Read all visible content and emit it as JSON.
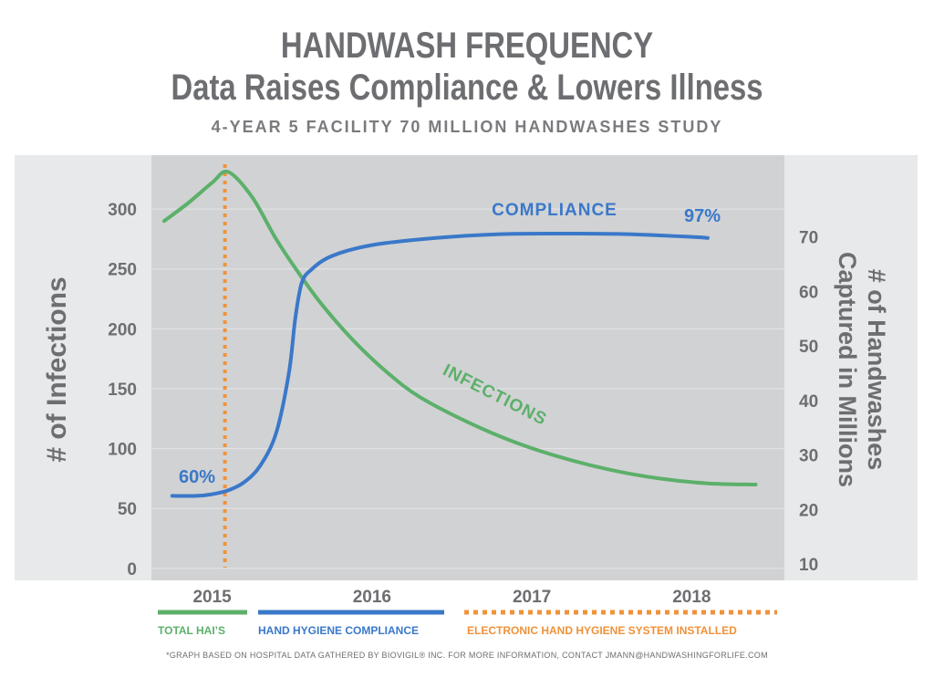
{
  "title": "HANDWASH FREQUENCY",
  "subtitle": "Data Raises Compliance & Lowers Illness",
  "study_line": "4-YEAR 5 FACILITY 70 MILLION HANDWASHES STUDY",
  "footnote": "*GRAPH BASED ON HOSPITAL DATA GATHERED BY BIOVIGIL® INC.  FOR MORE INFORMATION, CONTACT JMANN@HANDWASHINGFORLIFE.COM",
  "colors": {
    "infections": "#5cb06a",
    "compliance": "#3a78c9",
    "installed": "#f0923a",
    "plot_bg": "#d1d2d4",
    "outer_bg": "#e8e9ea",
    "axis_text": "#6d6e71"
  },
  "chart_data": {
    "type": "line",
    "xlabel": "",
    "x_ticks": [
      2015,
      2016,
      2017,
      2018
    ],
    "xlim": [
      2014.62,
      2018.58
    ],
    "y_left": {
      "label": "# of Infections",
      "ticks": [
        0,
        50,
        100,
        150,
        200,
        250,
        300
      ],
      "lim": [
        -10,
        345
      ]
    },
    "y_right": {
      "label_line1": "# of Handwashes",
      "label_line2": "Captured in Millions",
      "ticks": [
        10,
        20,
        30,
        40,
        50,
        60,
        70
      ],
      "lim": [
        7,
        85
      ]
    },
    "series": [
      {
        "name": "TOTAL HAI’S",
        "axis": "left",
        "annotation": "INFECTIONS",
        "points": [
          [
            2014.7,
            290
          ],
          [
            2014.85,
            305
          ],
          [
            2015.0,
            322
          ],
          [
            2015.1,
            331
          ],
          [
            2015.25,
            310
          ],
          [
            2015.4,
            275
          ],
          [
            2015.55,
            245
          ],
          [
            2015.7,
            218
          ],
          [
            2015.9,
            188
          ],
          [
            2016.1,
            163
          ],
          [
            2016.3,
            143
          ],
          [
            2016.6,
            122
          ],
          [
            2016.9,
            105
          ],
          [
            2017.2,
            92
          ],
          [
            2017.5,
            82
          ],
          [
            2017.8,
            75
          ],
          [
            2018.1,
            71
          ],
          [
            2018.4,
            70
          ]
        ]
      },
      {
        "name": "HAND HYGIENE COMPLIANCE",
        "axis": "right",
        "annotation": "COMPLIANCE",
        "start_label": "60%",
        "end_label": "97%",
        "points": [
          [
            2014.75,
            22.5
          ],
          [
            2014.9,
            22.5
          ],
          [
            2015.0,
            22.8
          ],
          [
            2015.1,
            23.5
          ],
          [
            2015.2,
            25.0
          ],
          [
            2015.3,
            28.0
          ],
          [
            2015.4,
            34.0
          ],
          [
            2015.48,
            45.0
          ],
          [
            2015.52,
            55.0
          ],
          [
            2015.56,
            61.5
          ],
          [
            2015.62,
            64.0
          ],
          [
            2015.75,
            66.5
          ],
          [
            2016.0,
            68.5
          ],
          [
            2016.4,
            69.8
          ],
          [
            2016.8,
            70.5
          ],
          [
            2017.2,
            70.6
          ],
          [
            2017.6,
            70.5
          ],
          [
            2018.0,
            70.0
          ],
          [
            2018.1,
            69.8
          ]
        ]
      },
      {
        "name": "ELECTRONIC HAND HYGIENE SYSTEM INSTALLED",
        "type": "vertical-line",
        "x": 2015.08
      }
    ],
    "legend": {
      "placement": "bottom"
    },
    "grid": true
  }
}
